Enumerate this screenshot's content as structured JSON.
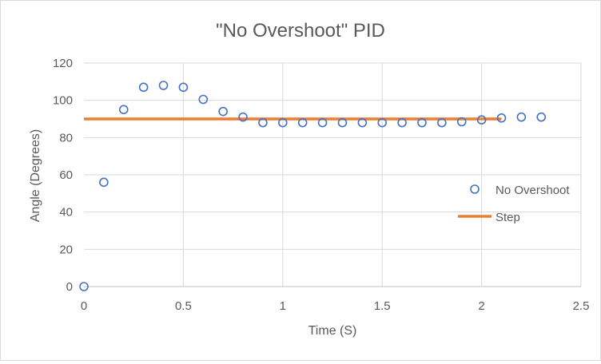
{
  "chart_data": {
    "type": "scatter",
    "title": "\"No Overshoot\" PID",
    "xlabel": "Time (S)",
    "ylabel": "Angle (Degrees)",
    "xlim": [
      0,
      2.5
    ],
    "ylim": [
      0,
      120
    ],
    "x_ticks": [
      "0",
      "0.5",
      "1",
      "1.5",
      "2",
      "2.5"
    ],
    "y_ticks": [
      "0",
      "20",
      "40",
      "60",
      "80",
      "100",
      "120"
    ],
    "grid": true,
    "legend_position": "right",
    "series": [
      {
        "name": "No Overshoot",
        "kind": "markers",
        "color": "#4472C4",
        "x": [
          0,
          0.1,
          0.2,
          0.3,
          0.4,
          0.5,
          0.6,
          0.7,
          0.8,
          0.9,
          1.0,
          1.1,
          1.2,
          1.3,
          1.4,
          1.5,
          1.6,
          1.7,
          1.8,
          1.9,
          2.0,
          2.1,
          2.2,
          2.3
        ],
        "y": [
          0,
          56,
          95,
          107,
          108,
          107,
          100.5,
          94,
          91,
          88,
          88,
          88,
          88,
          88,
          88,
          88,
          88,
          88,
          88,
          88.5,
          89.5,
          90.5,
          91,
          91
        ]
      },
      {
        "name": "Step",
        "kind": "line",
        "color": "#ED7D31",
        "x": [
          0,
          2.1
        ],
        "y": [
          90,
          90
        ]
      }
    ]
  }
}
